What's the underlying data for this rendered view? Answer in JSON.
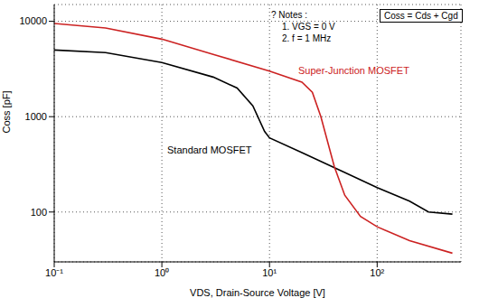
{
  "chart_data": {
    "type": "line",
    "x_label": "VDS, Drain-Source Voltage [V]",
    "y_label": "Coss [pF]",
    "log": true,
    "grid": true,
    "legend": false,
    "xlim": [
      0.1,
      600
    ],
    "ylim": [
      30,
      15000
    ],
    "xticks": [
      {
        "value": 0.1,
        "label": "10⁻¹"
      },
      {
        "value": 1,
        "label": "10⁰"
      },
      {
        "value": 10,
        "label": "10¹"
      },
      {
        "value": 100,
        "label": "10²"
      }
    ],
    "yticks": [
      100,
      1000,
      10000
    ],
    "series": [
      {
        "name": "Standard MOSFET",
        "color": "#000000",
        "x": [
          0.1,
          0.3,
          1,
          3,
          5,
          7,
          9,
          10,
          20,
          50,
          100,
          200,
          300,
          500
        ],
        "values": [
          5000,
          4700,
          3700,
          2600,
          2000,
          1300,
          700,
          600,
          420,
          260,
          180,
          130,
          100,
          95
        ]
      },
      {
        "name": "Super-Junction MOSFET",
        "color": "#cc2222",
        "x": [
          0.1,
          0.3,
          1,
          3,
          10,
          20,
          25,
          30,
          40,
          50,
          70,
          100,
          200,
          500
        ],
        "values": [
          9500,
          8500,
          6500,
          4500,
          3000,
          2300,
          1800,
          1000,
          300,
          150,
          90,
          70,
          50,
          37
        ]
      }
    ],
    "annotations": [
      "? Notes :",
      "1. VGS = 0 V",
      "2. f = 1 MHz",
      "Coss = Cds + Cgd"
    ]
  }
}
